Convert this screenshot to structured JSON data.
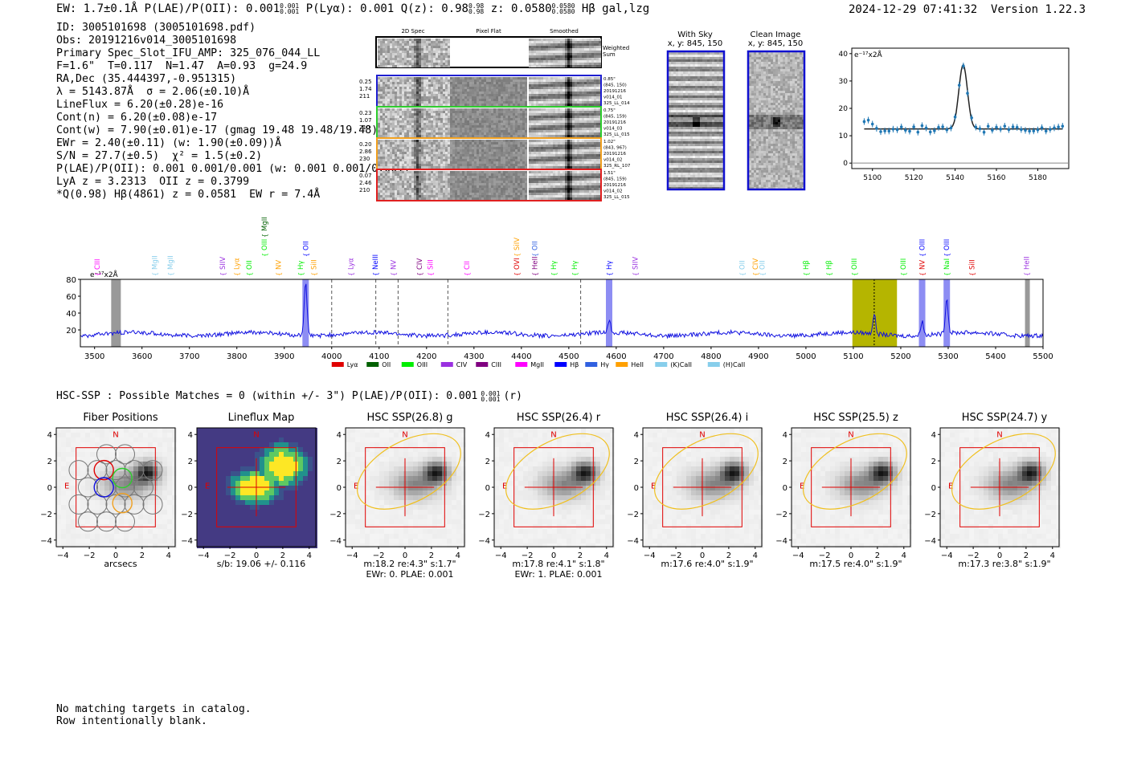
{
  "header": {
    "left": "EW: 1.7±0.1Å  P(LAE)/P(OII): 0.001",
    "left_sup": "0.001",
    "left_sub": "0.001",
    "mid": "P(Lyα): 0.001  Q(z): 0.98",
    "q_sup": "0.98",
    "q_sub": "0.98",
    "z_text": "z: 0.0580",
    "z_sup": "0.0580",
    "z_sub": "0.0580",
    "tail": "Hβ  gal,lzg",
    "timestamp": "2024-12-29 07:41:32",
    "version": "Version 1.22.3"
  },
  "info_lines": [
    "ID: 3005101698 (3005101698.pdf)",
    "Obs: 20191216v014_3005101698",
    "Primary Spec_Slot_IFU_AMP: 325_076_044_LL",
    "F=1.6\"  T=0.117  N=1.47  A=0.93  g=24.9",
    "RA,Dec (35.444397,-0.951315)",
    "λ = 5143.87Å  σ = 2.06(±0.10)Å",
    "LineFlux = 6.20(±0.28)e-16",
    "Cont(n) = 6.20(±0.08)e-17",
    "Cont(w) = 7.90(±0.01)e-17 (gmag 19.48 19.48/19.48)",
    "EWr = 2.40(±0.11) (w: 1.90(±0.09))Å",
    "S/N = 27.7(±0.5)  χ² = 1.5(±0.2)",
    "P(LAE)/P(OII): 0.001 0.001/0.001 (w: 0.001 0.001/0.001)",
    "LyA z = 3.2313  OII z = 0.3799",
    "*Q(0.98) Hβ(4861) z = 0.0581  EW r = 7.4Å"
  ],
  "stamps": {
    "col_titles": [
      "2D Spec",
      "Pixel Flat",
      "Smoothed"
    ],
    "weighted_label": "Weighted Sum",
    "rows": [
      {
        "left": [
          "0.25",
          "1.74",
          "211"
        ],
        "right": [
          "0.85\"",
          "(845, 150)",
          "20191216",
          "v014_01",
          "325_LL_014"
        ],
        "color": "#1f1fd0"
      },
      {
        "left": [
          "0.23",
          "1.07",
          "210"
        ],
        "right": [
          "0.75\"",
          "(845, 159)",
          "20191216",
          "v014_03",
          "325_LL_015"
        ],
        "color": "#2ecc2e"
      },
      {
        "left": [
          "0.20",
          "2.86",
          "230"
        ],
        "right": [
          "1.02\"",
          "(843, 967)",
          "20191216",
          "v014_02",
          "325_RL_107"
        ],
        "color": "#f0a020"
      },
      {
        "left": [
          "0.07",
          "2.46",
          "210"
        ],
        "right": [
          "1.51\"",
          "(845, 159)",
          "20191216",
          "v014_02",
          "325_LL_015"
        ],
        "color": "#e02020"
      }
    ]
  },
  "sky_panels": [
    {
      "title": "With Sky",
      "subtitle": "x, y: 845, 150"
    },
    {
      "title": "Clean Image",
      "subtitle": "x, y: 845, 150"
    }
  ],
  "zoom_plot": {
    "unit_label": "e⁻¹⁷x2Å",
    "yticks": [
      "40",
      "30",
      "20",
      "10",
      "0"
    ],
    "xticks": [
      "5100",
      "5120",
      "5140",
      "5160",
      "5180"
    ]
  },
  "chart_data": {
    "type": "line",
    "title": "",
    "xlabel": "",
    "ylabel": "e⁻¹⁷x2Å",
    "xlim": [
      3470,
      5500
    ],
    "ylim": [
      0,
      80
    ],
    "xticks": [
      "3500",
      "3600",
      "3700",
      "3800",
      "3900",
      "4000",
      "4100",
      "4200",
      "4300",
      "4400",
      "4500",
      "4600",
      "4700",
      "4800",
      "4900",
      "5000",
      "5100",
      "5200",
      "5300",
      "5400",
      "5500"
    ],
    "yticks": [
      "80",
      "60",
      "40",
      "20"
    ],
    "emission_peaks": [
      {
        "x": 3945,
        "y": 78
      },
      {
        "x": 4585,
        "y": 30
      },
      {
        "x": 5144,
        "y": 38
      },
      {
        "x": 5245,
        "y": 32
      },
      {
        "x": 5297,
        "y": 56
      }
    ],
    "baseline": 15,
    "legend": [
      "Lyα",
      "OII",
      "OIII",
      "CIV",
      "CIII",
      "MgII",
      "Hβ",
      "Hγ",
      "HeII",
      "(K)CaII",
      "(H)CaII"
    ],
    "legend_colors": [
      "#e00000",
      "#006000",
      "#00ee00",
      "#9a30e0",
      "#800080",
      "#ff00ff",
      "#0000ff",
      "#3060e0",
      "#ffa000",
      "#87ceeb",
      "#87ceeb"
    ]
  },
  "line_labels": [
    {
      "text": "CIII",
      "x": 3506,
      "color": "#ff00ff",
      "row": 2
    },
    {
      "text": "MgII",
      "x": 3627,
      "color": "#87ceeb",
      "row": 2
    },
    {
      "text": "MgII",
      "x": 3660,
      "color": "#87ceeb",
      "row": 2
    },
    {
      "text": "SIIV",
      "x": 3770,
      "color": "#9a30e0",
      "row": 2
    },
    {
      "text": "Lyα",
      "x": 3800,
      "color": "#ffa000",
      "row": 2
    },
    {
      "text": "OII",
      "x": 3826,
      "color": "#00ee00",
      "row": 2
    },
    {
      "text": "MgII",
      "x": 3858,
      "color": "#006000",
      "row": 1
    },
    {
      "text": "OIII",
      "x": 3858,
      "color": "#00ee00",
      "row": 0
    },
    {
      "text": "NV",
      "x": 3888,
      "color": "#ffa000",
      "row": 2
    },
    {
      "text": "Hγ",
      "x": 3934,
      "color": "#00ee00",
      "row": 2
    },
    {
      "text": "OII",
      "x": 3945,
      "color": "#0000ff",
      "row": 0
    },
    {
      "text": "SiII",
      "x": 3962,
      "color": "#ffa000",
      "row": 2
    },
    {
      "text": "Lyα",
      "x": 4040,
      "color": "#9a30e0",
      "row": 2
    },
    {
      "text": "NeIII",
      "x": 4092,
      "color": "#0000ff",
      "row": 2
    },
    {
      "text": "NV",
      "x": 4130,
      "color": "#9a30e0",
      "row": 2
    },
    {
      "text": "CIV",
      "x": 4185,
      "color": "#800080",
      "row": 2
    },
    {
      "text": "SiII",
      "x": 4208,
      "color": "#ff00ff",
      "row": 2
    },
    {
      "text": "CII",
      "x": 4285,
      "color": "#ff00ff",
      "row": 2
    },
    {
      "text": "SiIV",
      "x": 4390,
      "color": "#ffa000",
      "row": 0
    },
    {
      "text": "OVI",
      "x": 4390,
      "color": "#e00000",
      "row": 2
    },
    {
      "text": "OII",
      "x": 4428,
      "color": "#3060e0",
      "row": 0
    },
    {
      "text": "HeII",
      "x": 4428,
      "color": "#800080",
      "row": 2
    },
    {
      "text": "Hγ",
      "x": 4468,
      "color": "#00ee00",
      "row": 2
    },
    {
      "text": "Hγ",
      "x": 4512,
      "color": "#00ee00",
      "row": 2
    },
    {
      "text": "Hγ",
      "x": 4585,
      "color": "#0000ff",
      "row": 2
    },
    {
      "text": "SIIV",
      "x": 4640,
      "color": "#9a30e0",
      "row": 2
    },
    {
      "text": "OII",
      "x": 4865,
      "color": "#87ceeb",
      "row": 2
    },
    {
      "text": "CIV",
      "x": 4893,
      "color": "#ffa000",
      "row": 2
    },
    {
      "text": "OII",
      "x": 4908,
      "color": "#87ceeb",
      "row": 2
    },
    {
      "text": "Hβ",
      "x": 5000,
      "color": "#00ee00",
      "row": 2
    },
    {
      "text": "Hβ",
      "x": 5048,
      "color": "#00ee00",
      "row": 2
    },
    {
      "text": "OIII",
      "x": 5102,
      "color": "#00ee00",
      "row": 2
    },
    {
      "text": "OIII",
      "x": 5205,
      "color": "#00ee00",
      "row": 2
    },
    {
      "text": "NV",
      "x": 5245,
      "color": "#e00000",
      "row": 2
    },
    {
      "text": "OIII",
      "x": 5245,
      "color": "#0000ff",
      "row": 0
    },
    {
      "text": "NaI",
      "x": 5297,
      "color": "#00ee00",
      "row": 2
    },
    {
      "text": "OIII",
      "x": 5297,
      "color": "#0000ff",
      "row": 0
    },
    {
      "text": "SiII",
      "x": 5350,
      "color": "#e00000",
      "row": 2
    },
    {
      "text": "HeII",
      "x": 5465,
      "color": "#9a30e0",
      "row": 2
    }
  ],
  "hsc_line": "HSC-SSP : Possible Matches = 0 (within +/- 3\")  P(LAE)/P(OII): 0.001",
  "hsc_sup": "0.001",
  "hsc_sub": "0.001",
  "hsc_tail": "(r)",
  "cutouts": [
    {
      "title": "Fiber Positions",
      "foot": [
        "arcsecs"
      ]
    },
    {
      "title": "Lineflux Map",
      "foot": [
        "s/b: 19.06 +/- 0.116"
      ]
    },
    {
      "title": "HSC SSP(26.8) g",
      "foot": [
        "m:18.2  re:4.3\"  s:1.7\"",
        "EWr: 0. PLAE: 0.001"
      ]
    },
    {
      "title": "HSC SSP(26.4) r",
      "foot": [
        "m:17.8  re:4.1\"  s:1.8\"",
        "EWr: 1. PLAE: 0.001"
      ]
    },
    {
      "title": "HSC SSP(26.4) i",
      "foot": [
        "m:17.6  re:4.0\"  s:1.9\""
      ]
    },
    {
      "title": "HSC SSP(25.5) z",
      "foot": [
        "m:17.5  re:4.0\"  s:1.9\""
      ]
    },
    {
      "title": "HSC SSP(24.7) y",
      "foot": [
        "m:17.3  re:3.8\"  s:1.9\""
      ]
    }
  ],
  "cutout_ticks": {
    "y": [
      "4",
      "2",
      "0",
      "−2",
      "−4"
    ],
    "x": [
      "−4",
      "−2",
      "0",
      "2",
      "4"
    ]
  },
  "compass": {
    "n": "N",
    "e": "E"
  },
  "footer_lines": [
    "No matching targets in catalog.",
    "Row intentionally blank."
  ]
}
